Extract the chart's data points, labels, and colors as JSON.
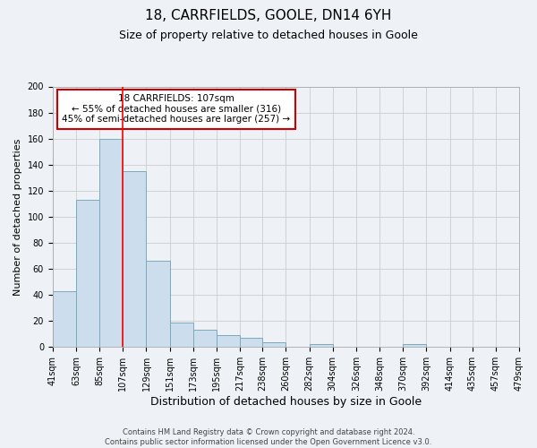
{
  "title": "18, CARRFIELDS, GOOLE, DN14 6YH",
  "subtitle": "Size of property relative to detached houses in Goole",
  "xlabel": "Distribution of detached houses by size in Goole",
  "ylabel": "Number of detached properties",
  "bin_edges": [
    41,
    63,
    85,
    107,
    129,
    151,
    173,
    195,
    217,
    238,
    260,
    282,
    304,
    326,
    348,
    370,
    392,
    414,
    435,
    457,
    479
  ],
  "bin_labels": [
    "41sqm",
    "63sqm",
    "85sqm",
    "107sqm",
    "129sqm",
    "151sqm",
    "173sqm",
    "195sqm",
    "217sqm",
    "238sqm",
    "260sqm",
    "282sqm",
    "304sqm",
    "326sqm",
    "348sqm",
    "370sqm",
    "392sqm",
    "414sqm",
    "435sqm",
    "457sqm",
    "479sqm"
  ],
  "counts": [
    43,
    113,
    160,
    135,
    66,
    19,
    13,
    9,
    7,
    4,
    0,
    2,
    0,
    0,
    0,
    2,
    0,
    0,
    0,
    0
  ],
  "bar_color": "#ccdded",
  "bar_edge_color": "#7aaabb",
  "red_line_x": 107,
  "annotation_title": "18 CARRFIELDS: 107sqm",
  "annotation_line1": "← 55% of detached houses are smaller (316)",
  "annotation_line2": "45% of semi-detached houses are larger (257) →",
  "annotation_box_facecolor": "#ffffff",
  "annotation_box_edgecolor": "#cc0000",
  "ylim": [
    0,
    200
  ],
  "yticks": [
    0,
    20,
    40,
    60,
    80,
    100,
    120,
    140,
    160,
    180,
    200
  ],
  "footer_line1": "Contains HM Land Registry data © Crown copyright and database right 2024.",
  "footer_line2": "Contains public sector information licensed under the Open Government Licence v3.0.",
  "title_fontsize": 11,
  "subtitle_fontsize": 9,
  "xlabel_fontsize": 9,
  "ylabel_fontsize": 8,
  "tick_fontsize": 7,
  "annotation_fontsize": 7.5,
  "footer_fontsize": 6,
  "grid_color": "#cccccc",
  "background_color": "#eef2f7"
}
